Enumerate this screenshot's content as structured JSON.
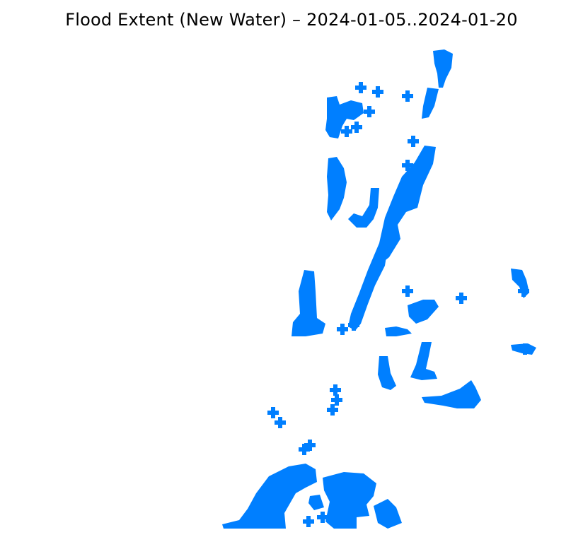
{
  "map": {
    "title": "Flood Extent (New Water) – 2024-01-05..2024-01-20",
    "water_color": "#007fff",
    "background_color": "#ffffff"
  }
}
